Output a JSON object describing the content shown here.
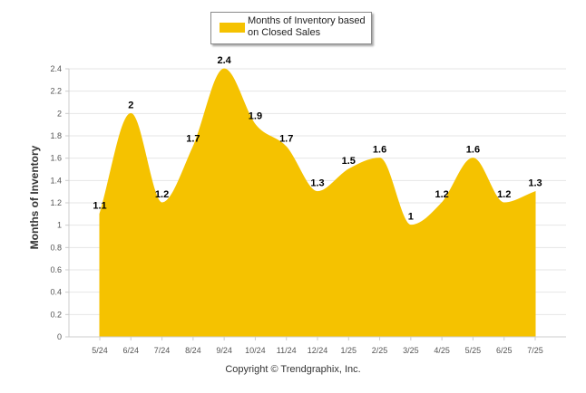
{
  "legend": {
    "label": "Months of Inventory based on Closed Sales"
  },
  "copyright": "Copyright © Trendgraphix, Inc.",
  "colors": {
    "fill": "#f5c200",
    "grid": "#e6e6e6",
    "axis": "#cccccc"
  },
  "chart_data": {
    "type": "area",
    "ylabel": "Months of Inventory",
    "ylim": [
      0,
      2.4
    ],
    "yticks": [
      0,
      0.2,
      0.4,
      0.6,
      0.8,
      1,
      1.2,
      1.4,
      1.6,
      1.8,
      2,
      2.2,
      2.4
    ],
    "grid": true,
    "legend_position": "top-center",
    "categories": [
      "5/24",
      "6/24",
      "7/24",
      "8/24",
      "9/24",
      "10/24",
      "11/24",
      "12/24",
      "1/25",
      "2/25",
      "3/25",
      "4/25",
      "5/25",
      "6/25",
      "7/25"
    ],
    "series": [
      {
        "name": "Months of Inventory based on Closed Sales",
        "values": [
          1.1,
          2,
          1.2,
          1.7,
          2.4,
          1.9,
          1.7,
          1.3,
          1.5,
          1.6,
          1,
          1.2,
          1.6,
          1.2,
          1.3
        ]
      }
    ]
  }
}
